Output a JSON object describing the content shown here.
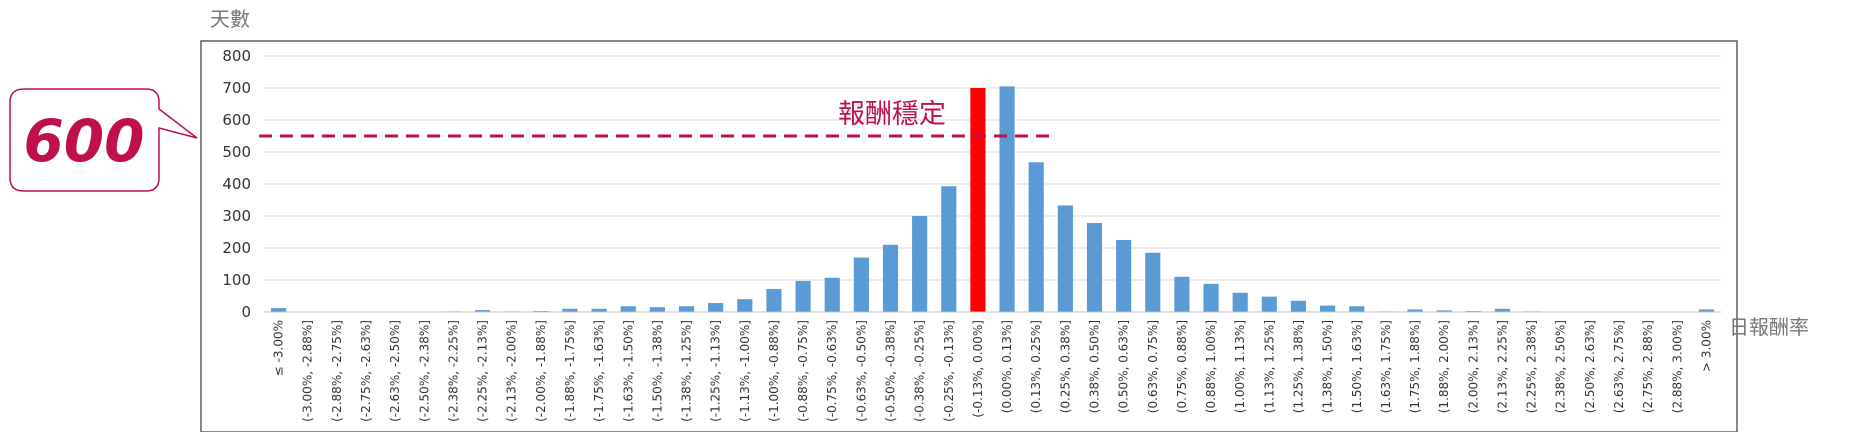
{
  "chart_data": {
    "type": "bar",
    "ylabel": "天數",
    "xlabel": "日報酬率",
    "ylim": [
      0,
      800
    ],
    "yticks": [
      0,
      100,
      200,
      300,
      400,
      500,
      600,
      700,
      800
    ],
    "grid": true,
    "categories": [
      "≤ -3.00%",
      "(-3.00%, -2.88%]",
      "(-2.88%, -2.75%]",
      "(-2.75%, -2.63%]",
      "(-2.63%, -2.50%]",
      "(-2.50%, -2.38%]",
      "(-2.38%, -2.25%]",
      "(-2.25%, -2.13%]",
      "(-2.13%, -2.00%]",
      "(-2.00%, -1.88%]",
      "(-1.88%, -1.75%]",
      "(-1.75%, -1.63%]",
      "(-1.63%, -1.50%]",
      "(-1.50%, -1.38%]",
      "(-1.38%, -1.25%]",
      "(-1.25%, -1.13%]",
      "(-1.13%, -1.00%]",
      "(-1.00%, -0.88%]",
      "(-0.88%, -0.75%]",
      "(-0.75%, -0.63%]",
      "(-0.63%, -0.50%]",
      "(-0.50%, -0.38%]",
      "(-0.38%, -0.25%]",
      "(-0.25%, -0.13%]",
      "(-0.13%, 0.00%]",
      "(0.00%, 0.13%]",
      "(0.13%, 0.25%]",
      "(0.25%, 0.38%]",
      "(0.38%, 0.50%]",
      "(0.50%, 0.63%]",
      "(0.63%, 0.75%]",
      "(0.75%, 0.88%]",
      "(0.88%, 1.00%]",
      "(1.00%, 1.13%]",
      "(1.13%, 1.25%]",
      "(1.25%, 1.38%]",
      "(1.38%, 1.50%]",
      "(1.50%, 1.63%]",
      "(1.63%, 1.75%]",
      "(1.75%, 1.88%]",
      "(1.88%, 2.00%]",
      "(2.00%, 2.13%]",
      "(2.13%, 2.25%]",
      "(2.25%, 2.38%]",
      "(2.38%, 2.50%]",
      "(2.50%, 2.63%]",
      "(2.63%, 2.75%]",
      "(2.75%, 2.88%]",
      "(2.88%, 3.00%]",
      "> 3.00%"
    ],
    "values": [
      12,
      0,
      0,
      0,
      0,
      0,
      2,
      6,
      2,
      3,
      10,
      10,
      18,
      15,
      18,
      28,
      40,
      72,
      97,
      107,
      170,
      210,
      300,
      393,
      700,
      705,
      468,
      333,
      278,
      225,
      185,
      110,
      88,
      60,
      48,
      35,
      20,
      18,
      2,
      8,
      5,
      3,
      10,
      2,
      1,
      0,
      0,
      0,
      0,
      8
    ],
    "highlight_index": 24,
    "colors": {
      "bar": "#5b9bd5",
      "highlight": "#ff0000",
      "annotation": "#c0104a",
      "grid": "#d9d9d9"
    },
    "annotations": {
      "reference_value": 550,
      "line_label": "報酬穩定",
      "callout_text": "600"
    }
  }
}
